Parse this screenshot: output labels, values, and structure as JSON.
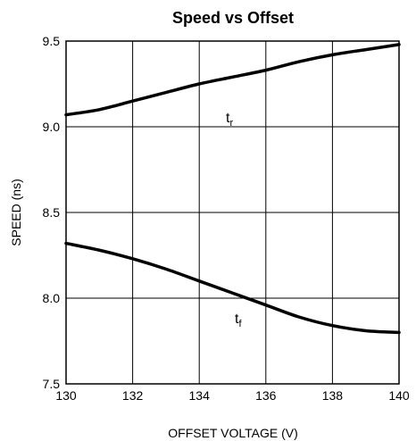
{
  "chart_data": {
    "type": "line",
    "title": "Speed vs Offset",
    "xlabel": "OFFSET VOLTAGE (V)",
    "ylabel": "SPEED (ns)",
    "xlim": [
      130,
      140
    ],
    "ylim": [
      7.5,
      9.5
    ],
    "x_ticks": [
      130,
      132,
      134,
      136,
      138,
      140
    ],
    "y_ticks": [
      7.5,
      8.0,
      8.5,
      9.0,
      9.5
    ],
    "x_tick_labels": [
      "130",
      "132",
      "134",
      "136",
      "138",
      "140"
    ],
    "y_tick_labels": [
      "7.5",
      "8.0",
      "8.5",
      "9.0",
      "9.5"
    ],
    "grid": true,
    "series": [
      {
        "name": "t_r",
        "label_main": "t",
        "label_sub": "r",
        "x": [
          130,
          131,
          132,
          133,
          134,
          135,
          136,
          137,
          138,
          139,
          140
        ],
        "y": [
          9.07,
          9.1,
          9.15,
          9.2,
          9.25,
          9.29,
          9.33,
          9.38,
          9.42,
          9.45,
          9.48
        ]
      },
      {
        "name": "t_f",
        "label_main": "t",
        "label_sub": "f",
        "x": [
          130,
          131,
          132,
          133,
          134,
          135,
          136,
          137,
          138,
          139,
          140
        ],
        "y": [
          8.32,
          8.28,
          8.23,
          8.17,
          8.1,
          8.03,
          7.96,
          7.89,
          7.84,
          7.81,
          7.8
        ]
      }
    ]
  }
}
